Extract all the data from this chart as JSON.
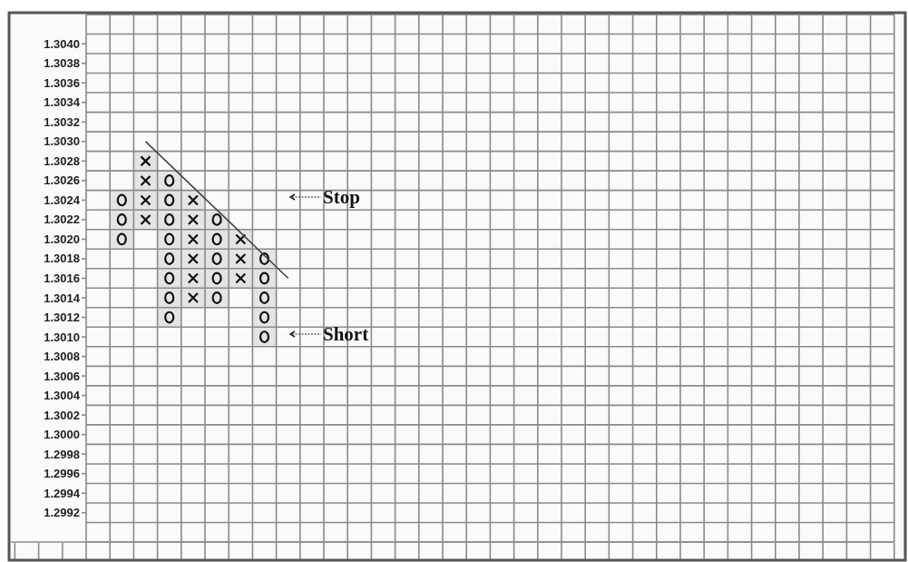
{
  "chart_data": {
    "type": "bar",
    "categories": [
      null,
      null,
      null,
      null,
      null,
      null,
      null,
      null,
      null,
      null,
      null,
      null,
      null,
      null,
      null,
      null,
      null,
      null,
      null,
      null,
      null,
      null,
      null,
      null,
      null,
      null,
      null,
      null,
      null,
      null,
      null,
      null,
      null,
      null
    ],
    "ylim": [
      1.2989,
      1.3043
    ],
    "yticks": [
      {
        "value": 1.304,
        "label": "1.3040"
      },
      {
        "value": 1.3038,
        "label": "1.3038"
      },
      {
        "value": 1.3036,
        "label": "1.3036"
      },
      {
        "value": 1.3034,
        "label": "1.3034"
      },
      {
        "value": 1.3032,
        "label": "1.3032"
      },
      {
        "value": 1.303,
        "label": "1.3030"
      },
      {
        "value": 1.3028,
        "label": "1.3028"
      },
      {
        "value": 1.3026,
        "label": "1.3026"
      },
      {
        "value": 1.3024,
        "label": "1.3024"
      },
      {
        "value": 1.3022,
        "label": "1.3022"
      },
      {
        "value": 1.302,
        "label": "1.3020"
      },
      {
        "value": 1.3018,
        "label": "1.3018"
      },
      {
        "value": 1.3016,
        "label": "1.3016"
      },
      {
        "value": 1.3014,
        "label": "1.3014"
      },
      {
        "value": 1.3012,
        "label": "1.3012"
      },
      {
        "value": 1.301,
        "label": "1.3010"
      },
      {
        "value": 1.3008,
        "label": "1.3008"
      },
      {
        "value": 1.3006,
        "label": "1.3006"
      },
      {
        "value": 1.3004,
        "label": "1.3004"
      },
      {
        "value": 1.3002,
        "label": "1.3002"
      },
      {
        "value": 1.3,
        "label": "1.3000"
      },
      {
        "value": 1.2998,
        "label": "1.2998"
      },
      {
        "value": 1.2996,
        "label": "1.2996"
      },
      {
        "value": 1.2994,
        "label": "1.2994"
      },
      {
        "value": 1.2992,
        "label": "1.2992"
      }
    ],
    "tick_labels": "y",
    "grid": true,
    "series": [
      {
        "marker": "circle",
        "color": "#e4e4e4",
        "base": [
          null,
          1.3019,
          null,
          1.3011,
          null,
          1.3013,
          null,
          1.3009,
          null,
          null,
          null,
          null,
          null,
          null,
          null,
          null,
          null,
          null,
          null,
          null,
          null,
          null,
          null,
          null,
          null,
          null,
          null,
          null,
          null,
          null,
          null,
          null,
          null,
          null
        ],
        "values": [
          null,
          0.0006,
          null,
          0.0016,
          null,
          0.001,
          null,
          0.001,
          null,
          null,
          null,
          null,
          null,
          null,
          null,
          null,
          null,
          null,
          null,
          null,
          null,
          null,
          null,
          null,
          null,
          null,
          null,
          null,
          null,
          null,
          null,
          null,
          null,
          null
        ]
      },
      {
        "marker": "cross",
        "color": "#e4e4e4",
        "base": [
          null,
          null,
          1.3021,
          null,
          1.3013,
          null,
          1.3015,
          null,
          null,
          null,
          null,
          null,
          null,
          null,
          null,
          null,
          null,
          null,
          null,
          null,
          null,
          null,
          null,
          null,
          null,
          null,
          null,
          null,
          null,
          null,
          null,
          null,
          null,
          null
        ],
        "values": [
          null,
          null,
          0.0008,
          null,
          0.0012,
          null,
          0.0006,
          null,
          null,
          null,
          null,
          null,
          null,
          null,
          null,
          null,
          null,
          null,
          null,
          null,
          null,
          null,
          null,
          null,
          null,
          null,
          null,
          null,
          null,
          null,
          null,
          null,
          null,
          null
        ]
      },
      {
        "type": "line",
        "line_style": "solid",
        "color": "#444444",
        "values": [
          null,
          null,
          1.303,
          null,
          null,
          null,
          null,
          null,
          1.3016,
          null,
          null,
          null,
          null,
          null,
          null,
          null,
          null,
          null,
          null,
          null,
          null,
          null,
          null,
          null,
          null,
          null,
          null,
          null,
          null,
          null,
          null,
          null,
          null,
          null
        ]
      }
    ],
    "annotations": [
      "Stop",
      "Short"
    ]
  }
}
